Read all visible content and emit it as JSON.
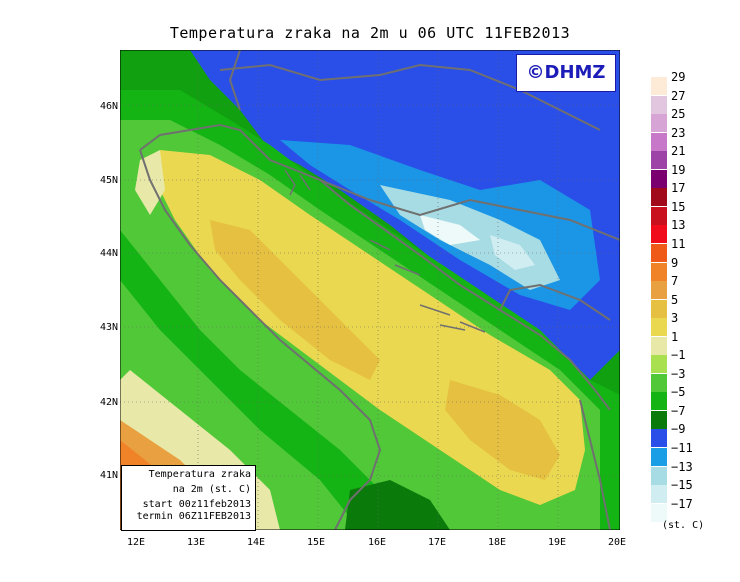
{
  "title": "Temperatura zraka na 2m u 06 UTC 11FEB2013",
  "copyright": "©DHMZ",
  "lat_labels": [
    "46N",
    "45N",
    "44N",
    "43N",
    "42N",
    "41N"
  ],
  "lon_labels": [
    "12E",
    "13E",
    "14E",
    "15E",
    "16E",
    "17E",
    "18E",
    "19E",
    "20E"
  ],
  "info": {
    "line1": "Temperatura zraka",
    "line2": "na 2m (st. C)",
    "line3": "start 00z11feb2013",
    "line4": "termin 06Z11FEB2013"
  },
  "colorbar": {
    "unit": "(st. C)",
    "levels": [
      "29",
      "27",
      "25",
      "23",
      "21",
      "19",
      "17",
      "15",
      "13",
      "11",
      "9",
      "7",
      "5",
      "3",
      "1",
      "−1",
      "−3",
      "−5",
      "−7",
      "−9",
      "−11",
      "−13",
      "−15",
      "−17"
    ],
    "colors": [
      "#fdebd8",
      "#e2c6e0",
      "#d7a4d6",
      "#c878c8",
      "#9d43a8",
      "#7a0070",
      "#a00a1a",
      "#c8101e",
      "#f00c1a",
      "#f05a18",
      "#f08228",
      "#e8a040",
      "#e6c040",
      "#ead850",
      "#e8e8a8",
      "#a8e050",
      "#50c838",
      "#14b414",
      "#0a7a0a",
      "#2a4ee8",
      "#1a9ee6",
      "#a8dce4",
      "#d0eef2",
      "#eefafa"
    ]
  }
}
